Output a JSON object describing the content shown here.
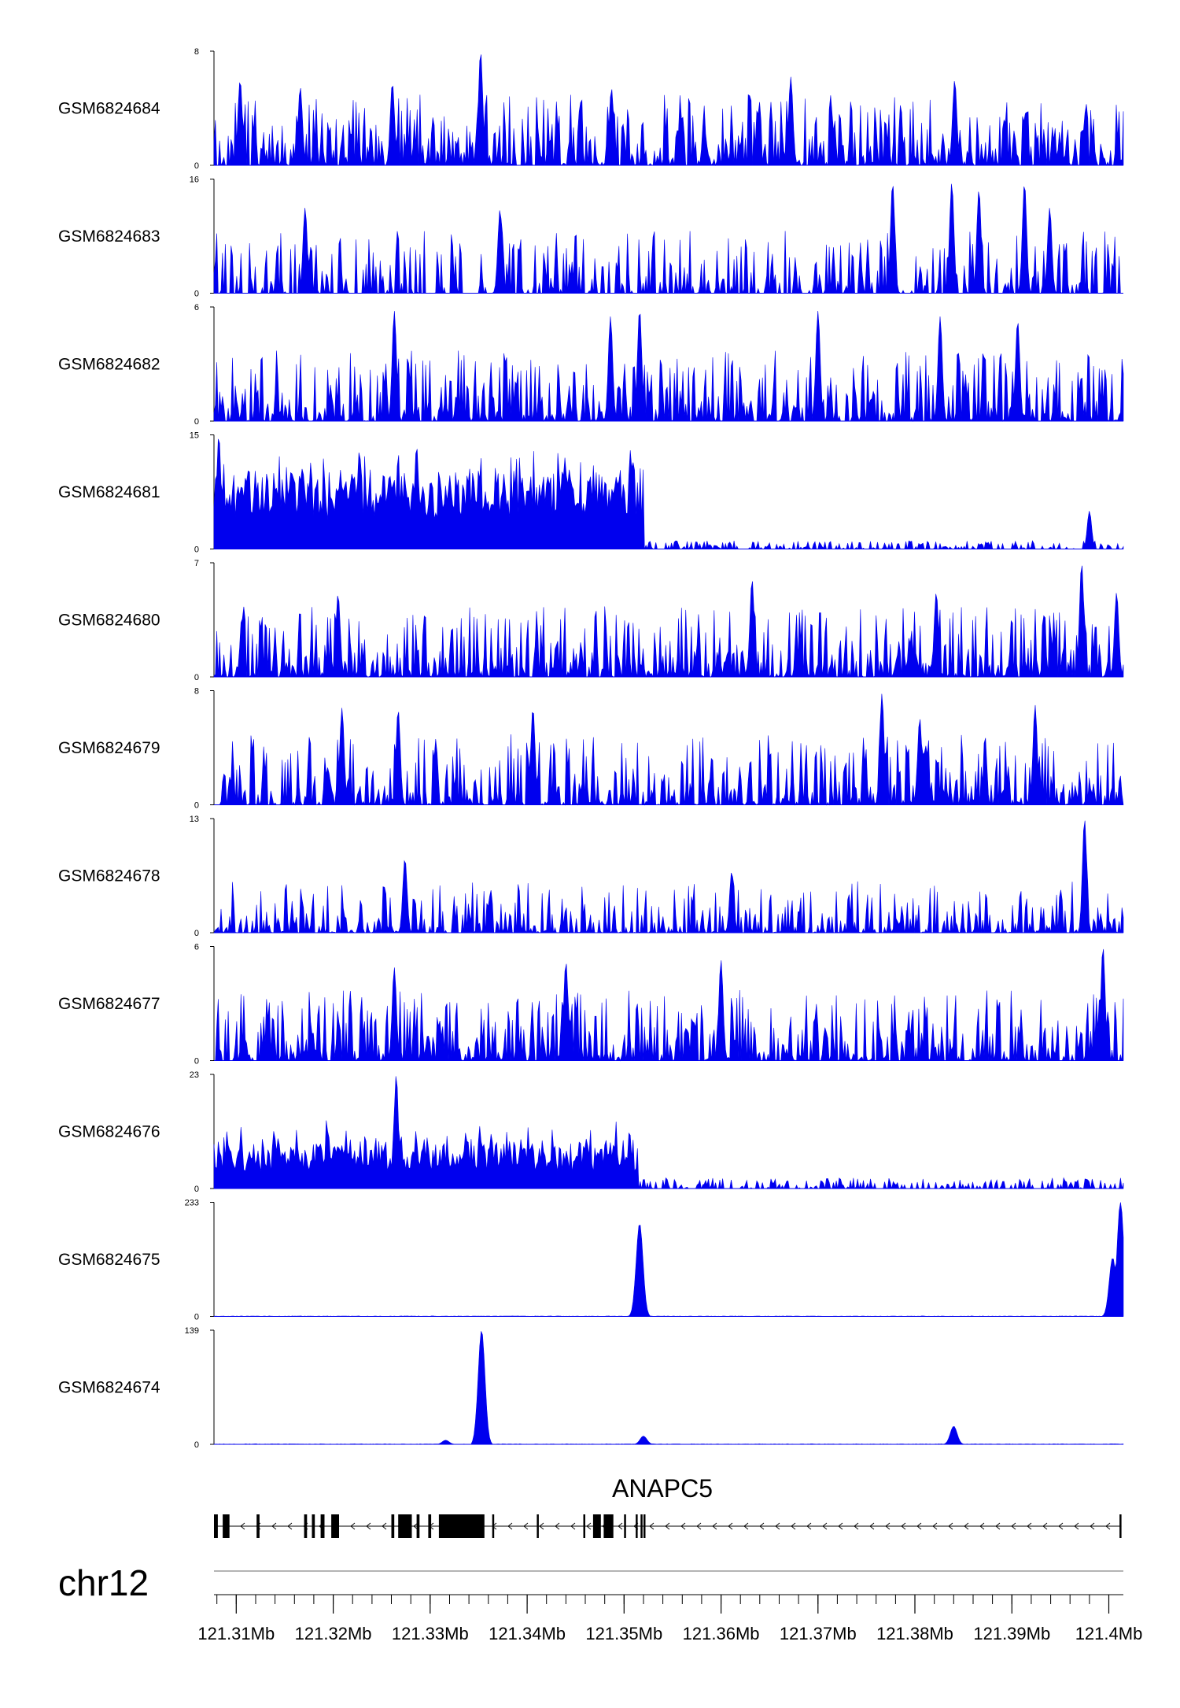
{
  "chart_data": {
    "type": "area",
    "title": "",
    "chromosome": "chr12",
    "xlim_mb": [
      121.3077,
      121.4015
    ],
    "x_ticks_mb": [
      121.31,
      121.32,
      121.33,
      121.34,
      121.35,
      121.36,
      121.37,
      121.38,
      121.39,
      121.4
    ],
    "x_tick_labels": [
      "121.31Mb",
      "121.32Mb",
      "121.33Mb",
      "121.34Mb",
      "121.35Mb",
      "121.36Mb",
      "121.37Mb",
      "121.38Mb",
      "121.39Mb",
      "121.4Mb"
    ],
    "fill_color": "#0000ee",
    "tracks": [
      {
        "name": "GSM6824684",
        "ymax": 8,
        "ymin": 0,
        "pattern": "spiky",
        "peaks": [
          [
            121.3352,
            8.0
          ],
          [
            121.3104,
            6.0
          ],
          [
            121.3166,
            5.5
          ],
          [
            121.3261,
            5.8
          ],
          [
            121.3487,
            5.4
          ],
          [
            121.3672,
            6.2
          ],
          [
            121.3841,
            6.0
          ]
        ]
      },
      {
        "name": "GSM6824683",
        "ymax": 16,
        "ymin": 0,
        "pattern": "sparse",
        "peaks": [
          [
            121.3372,
            11.8
          ],
          [
            121.3171,
            12.0
          ],
          [
            121.3838,
            15.5
          ],
          [
            121.3777,
            15.5
          ],
          [
            121.3913,
            15.5
          ],
          [
            121.3866,
            14.6
          ],
          [
            121.3939,
            12.0
          ]
        ]
      },
      {
        "name": "GSM6824682",
        "ymax": 6,
        "ymin": 0,
        "pattern": "spiky",
        "peaks": [
          [
            121.3516,
            5.9
          ],
          [
            121.3263,
            5.8
          ],
          [
            121.3486,
            5.5
          ],
          [
            121.37,
            5.8
          ],
          [
            121.3826,
            5.5
          ],
          [
            121.3906,
            5.3
          ]
        ]
      },
      {
        "name": "GSM6824681",
        "ymax": 15,
        "ymin": 0,
        "pattern": "split",
        "split_mb": 121.352,
        "left_level": 7,
        "right_level": 0.6,
        "peaks": [
          [
            121.3082,
            15.0
          ],
          [
            121.3286,
            13.6
          ],
          [
            121.3439,
            12.0
          ],
          [
            121.3227,
            13.0
          ],
          [
            121.398,
            5.0
          ]
        ]
      },
      {
        "name": "GSM6824680",
        "ymax": 7,
        "ymin": 0,
        "pattern": "spiky",
        "peaks": [
          [
            121.3972,
            7.0
          ],
          [
            121.3632,
            6.0
          ],
          [
            121.3822,
            5.2
          ],
          [
            121.3205,
            5.1
          ],
          [
            121.4008,
            5.2
          ]
        ]
      },
      {
        "name": "GSM6824679",
        "ymax": 8,
        "ymin": 0,
        "pattern": "spiky",
        "peaks": [
          [
            121.3766,
            7.8
          ],
          [
            121.3805,
            6.1
          ],
          [
            121.3209,
            6.8
          ],
          [
            121.3267,
            6.7
          ],
          [
            121.3406,
            6.8
          ],
          [
            121.3924,
            7.0
          ]
        ]
      },
      {
        "name": "GSM6824678",
        "ymax": 13,
        "ymin": 0,
        "pattern": "low-spiky",
        "peaks": [
          [
            121.3975,
            13.0
          ],
          [
            121.3274,
            8.5
          ],
          [
            121.3611,
            7.0
          ]
        ]
      },
      {
        "name": "GSM6824677",
        "ymax": 6,
        "ymin": 0,
        "pattern": "spiky",
        "peaks": [
          [
            121.3994,
            6.0
          ],
          [
            121.344,
            5.2
          ],
          [
            121.36,
            5.3
          ],
          [
            121.3263,
            4.9
          ]
        ]
      },
      {
        "name": "GSM6824676",
        "ymax": 23,
        "ymin": 0,
        "pattern": "split",
        "split_mb": 121.3515,
        "left_level": 6,
        "right_level": 1.2,
        "peaks": [
          [
            121.3265,
            23.0
          ],
          [
            121.3363,
            11.0
          ],
          [
            121.3461,
            10.0
          ]
        ]
      },
      {
        "name": "GSM6824675",
        "ymax": 233,
        "ymin": 0,
        "pattern": "flat-peaks",
        "peaks": [
          [
            121.3516,
            190.0
          ],
          [
            121.4012,
            233.0
          ],
          [
            121.4004,
            120.0
          ]
        ]
      },
      {
        "name": "GSM6824674",
        "ymax": 139,
        "ymin": 0,
        "pattern": "flat-peaks",
        "peaks": [
          [
            121.3353,
            139.0
          ],
          [
            121.384,
            22.0
          ],
          [
            121.352,
            10.0
          ],
          [
            121.3316,
            5.0
          ]
        ]
      }
    ],
    "gene": {
      "name": "ANAPC5",
      "strand": "-",
      "start_mb": 121.3077,
      "end_mb": 121.4013,
      "exons_mb": [
        [
          121.3077,
          121.3081
        ],
        [
          121.3086,
          121.3093
        ],
        [
          121.3121,
          121.3124
        ],
        [
          121.317,
          121.3173
        ],
        [
          121.3178,
          121.3181
        ],
        [
          121.3187,
          121.3191
        ],
        [
          121.3198,
          121.3206
        ],
        [
          121.326,
          121.3263
        ],
        [
          121.3267,
          121.3281
        ],
        [
          121.3286,
          121.3289
        ],
        [
          121.3298,
          121.3301
        ],
        [
          121.3309,
          121.3356
        ],
        [
          121.3364,
          121.3366
        ],
        [
          121.341,
          121.3412
        ],
        [
          121.3458,
          121.346
        ],
        [
          121.3468,
          121.3476
        ],
        [
          121.3479,
          121.3489
        ],
        [
          121.35,
          121.3502
        ],
        [
          121.3512,
          121.3514
        ],
        [
          121.3517,
          121.3519
        ],
        [
          121.352,
          121.3522
        ],
        [
          121.4011,
          121.4013
        ]
      ]
    }
  }
}
